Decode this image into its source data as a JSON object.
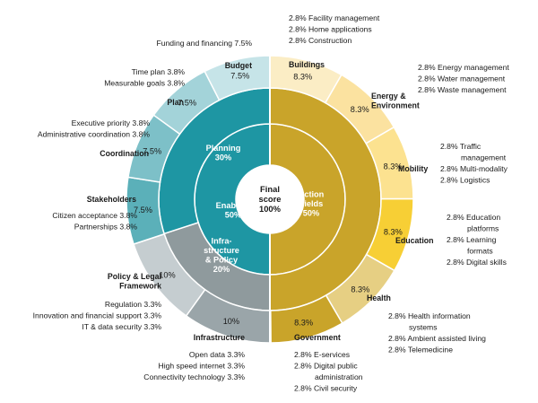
{
  "chart_data": {
    "type": "sunburst",
    "center": {
      "label": [
        "Final",
        "score",
        "100%"
      ]
    },
    "level1": [
      {
        "name": "Enablers",
        "label": [
          "Enablers",
          "50%"
        ],
        "value": 50,
        "color": "#1e96a3"
      },
      {
        "name": "Action Fields",
        "label": [
          "Action",
          "Fields",
          "50%"
        ],
        "value": 50,
        "color": "#c9a42a"
      }
    ],
    "level2": [
      {
        "name": "Infrastructure & Policy",
        "label": [
          "Infra-",
          "structure",
          "& Policy",
          "20%"
        ],
        "value": 20,
        "parent": "Enablers",
        "color": "#8f9a9d"
      },
      {
        "name": "Planning",
        "label": [
          "Planning",
          "30%"
        ],
        "value": 30,
        "parent": "Enablers",
        "color": "#1e96a3"
      },
      {
        "name": "Action Fields",
        "label": [],
        "value": 50,
        "parent": "Action Fields",
        "color": "#c9a42a"
      }
    ],
    "level3": [
      {
        "name": "Buildings",
        "value": 8.3,
        "label": "8.3%",
        "category": [
          "Buildings"
        ],
        "color": "#fbedc5",
        "items": [
          "2.8%  Facility management",
          "2.8%  Home applications",
          "2.8%  Construction"
        ]
      },
      {
        "name": "Energy & Environment",
        "value": 8.3,
        "label": "8.3%",
        "category": [
          "Energy &",
          "Environment"
        ],
        "color": "#fbe2a0",
        "items": [
          "2.8%  Energy management",
          "2.8%  Water management",
          "2.8%  Waste management"
        ]
      },
      {
        "name": "Mobility",
        "value": 8.3,
        "label": "8.3%",
        "category": [
          "Mobility"
        ],
        "color": "#fce290",
        "items": [
          "2.8%  Traffic",
          "management",
          "2.8%  Multi-modality",
          "2.8%  Logistics"
        ]
      },
      {
        "name": "Education",
        "value": 8.3,
        "label": "8.3%",
        "category": [
          "Education"
        ],
        "color": "#f7cf35",
        "items": [
          "2.8%  Education",
          "platforms",
          "2.8%  Learning",
          "formats",
          "2.8%  Digital skills"
        ]
      },
      {
        "name": "Health",
        "value": 8.3,
        "label": "8.3%",
        "category": [
          "Health"
        ],
        "color": "#e6cf83",
        "items": [
          "2.8%  Health information",
          "systems",
          "2.8%  Ambient assisted living",
          "2.8%  Telemedicine"
        ]
      },
      {
        "name": "Government",
        "value": 8.3,
        "label": "8.3%",
        "category": [
          "Government"
        ],
        "color": "#c9a42a",
        "items": [
          "2.8%  E-services",
          "2.8%  Digital public",
          "administration",
          "2.8%  Civil security"
        ]
      },
      {
        "name": "Infrastructure",
        "value": 10,
        "label": "10%",
        "category": [
          "Infrastructure"
        ],
        "color": "#9aa5a9",
        "items": [
          "Open data  3.3%",
          "High speed internet  3.3%",
          "Connectivity technology  3.3%"
        ]
      },
      {
        "name": "Policy & Legal Framework",
        "value": 10,
        "label": "10%",
        "category": [
          "Policy & Legal",
          "Framework"
        ],
        "color": "#c5cdd0",
        "items": [
          "Regulation  3.3%",
          "Innovation and financial support  3.3%",
          "IT & data security  3.3%"
        ]
      },
      {
        "name": "Stakeholders",
        "value": 7.5,
        "label": "7.5%",
        "category": [
          "Stakeholders"
        ],
        "color": "#5bb0b9",
        "items": [
          "Citizen acceptance  3.8%",
          "Partnerships  3.8%"
        ]
      },
      {
        "name": "Coordination",
        "value": 7.5,
        "label": "7.5%",
        "category": [
          "Coordination"
        ],
        "color": "#7dc0c8",
        "items": [
          "Executive priority  3.8%",
          "Administrative coordination  3.8%"
        ]
      },
      {
        "name": "Plan",
        "value": 7.5,
        "label": "7.5%",
        "category": [
          "Plan"
        ],
        "color": "#a3d3d9",
        "items": [
          "Time plan  3.8%",
          "Measurable goals  3.8%"
        ]
      },
      {
        "name": "Budget",
        "value": 7.5,
        "label": "7.5%",
        "category": [
          "Budget"
        ],
        "color": "#c6e4e8",
        "items": [
          "Funding and financing  7.5%"
        ]
      }
    ]
  }
}
